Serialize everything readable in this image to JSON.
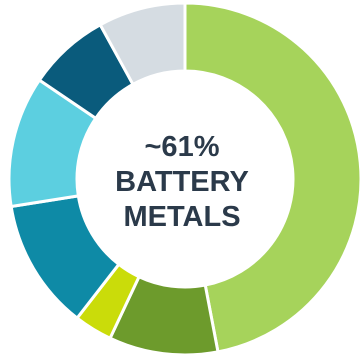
{
  "chart_data": {
    "type": "pie",
    "variant": "donut",
    "title": "",
    "slices": [
      {
        "value": 47.0,
        "color": "#a6d35b"
      },
      {
        "value": 10.0,
        "color": "#6d9b2c"
      },
      {
        "value": 3.5,
        "color": "#cadc0a"
      },
      {
        "value": 12.0,
        "color": "#0e8aa6"
      },
      {
        "value": 12.0,
        "color": "#5ccfe0"
      },
      {
        "value": 7.5,
        "color": "#0a5b7c"
      },
      {
        "value": 8.0,
        "color": "#d5dce2"
      }
    ],
    "center_label": {
      "line1": "~61%",
      "line2": "BATTERY",
      "line3": "METALS"
    }
  }
}
